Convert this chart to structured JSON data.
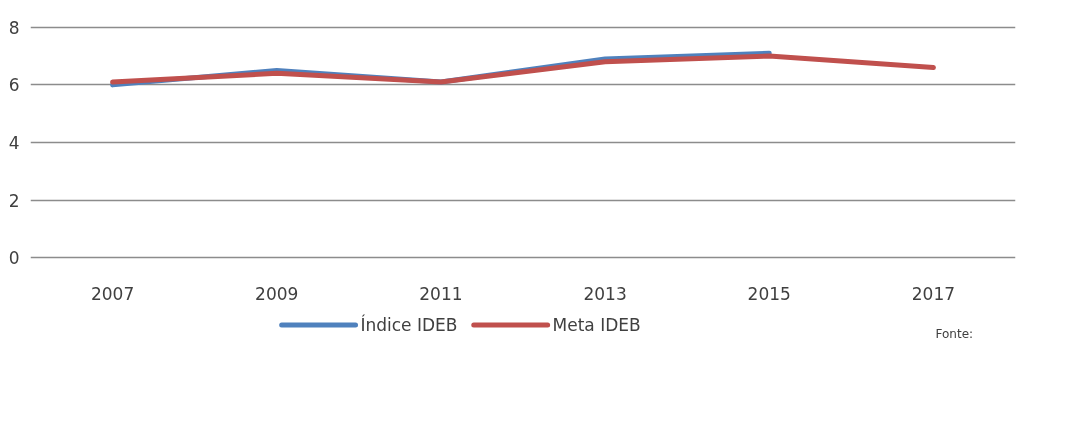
{
  "chart_data": {
    "type": "line",
    "categories": [
      "2007",
      "2009",
      "2011",
      "2013",
      "2015",
      "2017"
    ],
    "series": [
      {
        "name": "Índice IDEB",
        "color": "#4f81bd",
        "values": [
          6.0,
          6.5,
          6.1,
          6.9,
          7.1,
          null
        ]
      },
      {
        "name": "Meta IDEB",
        "color": "#c0504d",
        "values": [
          6.1,
          6.4,
          6.1,
          6.8,
          7.0,
          6.6
        ]
      }
    ],
    "ylim": [
      0,
      8
    ],
    "yticks": [
      0,
      2,
      4,
      6,
      8
    ],
    "grid": "y",
    "legend": "bottom",
    "marker": "none",
    "line_style": "solid",
    "annotations": [
      "Fonte:"
    ]
  }
}
